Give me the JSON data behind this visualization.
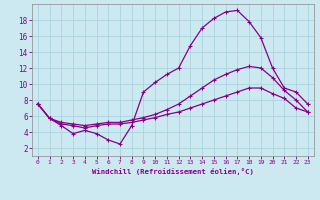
{
  "xlabel": "Windchill (Refroidissement éolien,°C)",
  "ylabel": "",
  "background_color": "#cce8f0",
  "grid_color": "#aad4e0",
  "line_color": "#880088",
  "x_ticks": [
    0,
    1,
    2,
    3,
    4,
    5,
    6,
    7,
    8,
    9,
    10,
    11,
    12,
    13,
    14,
    15,
    16,
    17,
    18,
    19,
    20,
    21,
    22,
    23
  ],
  "y_ticks": [
    2,
    4,
    6,
    8,
    10,
    12,
    14,
    16,
    18
  ],
  "ylim": [
    1.0,
    20.0
  ],
  "xlim": [
    -0.5,
    23.5
  ],
  "series": [
    {
      "x": [
        0,
        1,
        2,
        3,
        4,
        5,
        6,
        7,
        8,
        9,
        10,
        11,
        12,
        13,
        14,
        15,
        16,
        17,
        18,
        19,
        20,
        21,
        22,
        23
      ],
      "y": [
        7.5,
        5.7,
        4.8,
        3.8,
        4.2,
        3.8,
        3.0,
        2.5,
        4.8,
        9.0,
        10.2,
        11.2,
        12.0,
        14.8,
        17.0,
        18.2,
        19.0,
        19.2,
        17.8,
        15.8,
        12.0,
        9.5,
        9.0,
        7.5
      ]
    },
    {
      "x": [
        0,
        1,
        2,
        3,
        4,
        5,
        6,
        7,
        8,
        9,
        10,
        11,
        12,
        13,
        14,
        15,
        16,
        17,
        18,
        19,
        20,
        21,
        22,
        23
      ],
      "y": [
        7.5,
        5.7,
        5.2,
        5.0,
        4.8,
        5.0,
        5.2,
        5.2,
        5.5,
        5.8,
        6.2,
        6.8,
        7.5,
        8.5,
        9.5,
        10.5,
        11.2,
        11.8,
        12.2,
        12.0,
        10.8,
        9.2,
        8.0,
        6.5
      ]
    },
    {
      "x": [
        0,
        1,
        2,
        3,
        4,
        5,
        6,
        7,
        8,
        9,
        10,
        11,
        12,
        13,
        14,
        15,
        16,
        17,
        18,
        19,
        20,
        21,
        22,
        23
      ],
      "y": [
        7.5,
        5.7,
        5.0,
        4.8,
        4.5,
        4.8,
        5.0,
        5.0,
        5.2,
        5.5,
        5.8,
        6.2,
        6.5,
        7.0,
        7.5,
        8.0,
        8.5,
        9.0,
        9.5,
        9.5,
        8.8,
        8.2,
        7.0,
        6.5
      ]
    }
  ]
}
